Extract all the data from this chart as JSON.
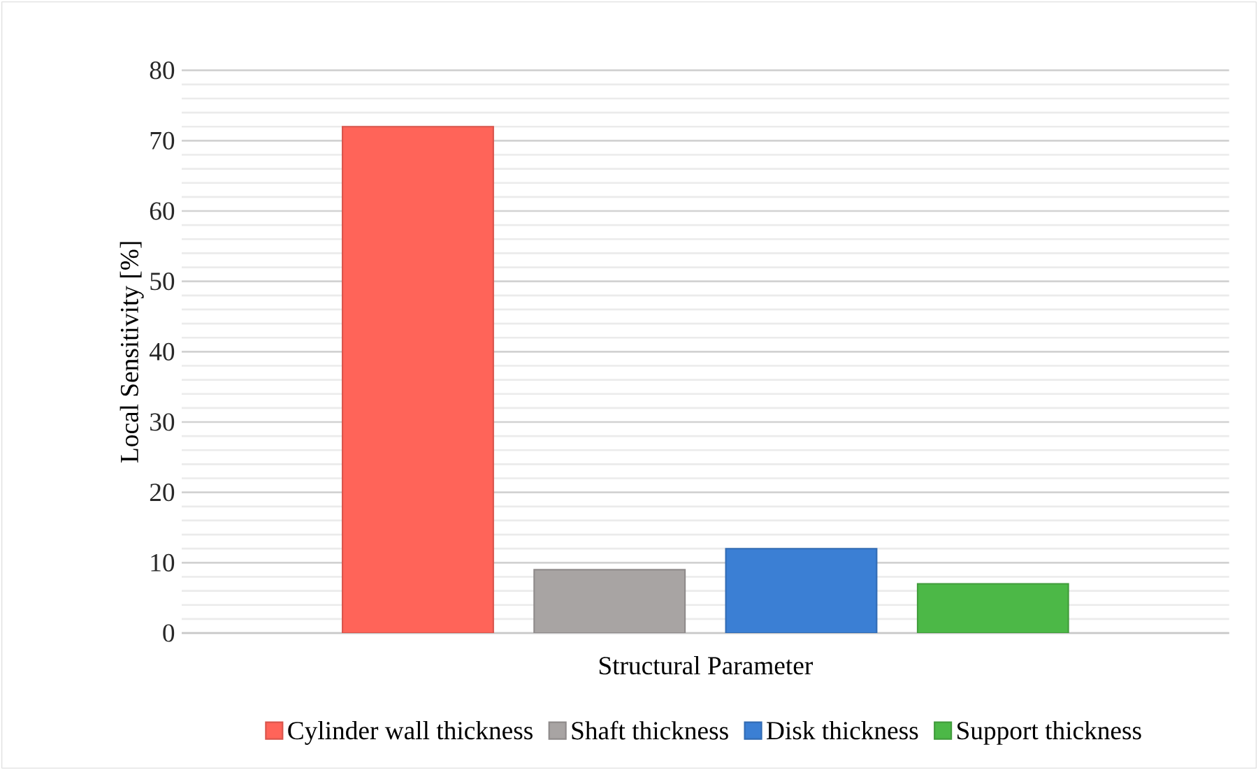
{
  "chart_data": {
    "type": "bar",
    "xlabel": "Structural Parameter",
    "ylabel": "Local Sensitivity [%]",
    "categories": [
      null
    ],
    "series": [
      {
        "name": "Cylinder wall thickness",
        "color": "#ff6459",
        "values": [
          72
        ]
      },
      {
        "name": "Shaft thickness",
        "color": "#a8a4a3",
        "values": [
          9
        ]
      },
      {
        "name": "Disk thickness",
        "color": "#3b7fd4",
        "values": [
          12
        ]
      },
      {
        "name": "Support thickness",
        "color": "#4cb847",
        "values": [
          7
        ]
      }
    ],
    "ylim": [
      0,
      80
    ],
    "yticks": [
      0,
      10,
      20,
      30,
      40,
      50,
      60,
      70,
      80
    ],
    "grid": "y",
    "legend": "bottom"
  }
}
